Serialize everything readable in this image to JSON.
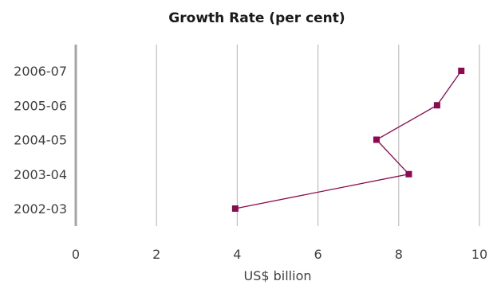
{
  "chart_data": {
    "type": "line",
    "orientation": "horizontal",
    "title": "Growth Rate (per cent)",
    "xlabel": "US$ billion",
    "ylabel": "",
    "categories": [
      "2002-03",
      "2003-04",
      "2004-05",
      "2005-06",
      "2006-07"
    ],
    "series": [
      {
        "values": [
          3.95,
          8.25,
          7.45,
          8.95,
          9.55
        ],
        "color": "#8b0a50"
      }
    ],
    "xlim": [
      0,
      10
    ],
    "x_ticks": [
      "0",
      "2",
      "4",
      "6",
      "8",
      "10"
    ],
    "x_tick_values": [
      0,
      2,
      4,
      6,
      8,
      10
    ],
    "grid": "vertical",
    "legend": "none"
  }
}
